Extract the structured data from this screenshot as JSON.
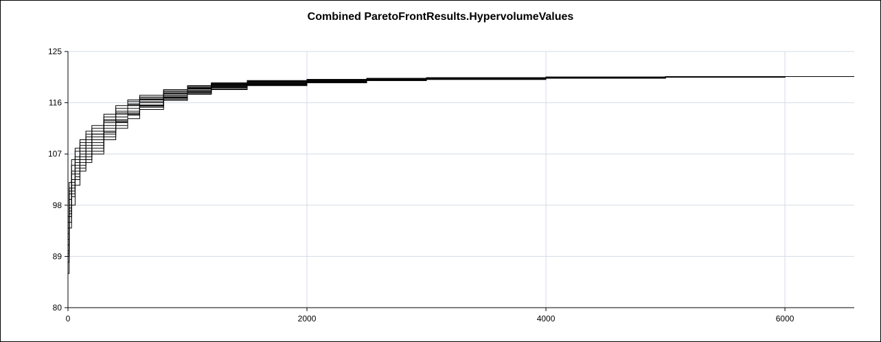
{
  "chart_data": {
    "type": "line",
    "title": "Combined ParetoFrontResults.HypervolumeValues",
    "xlabel": "",
    "ylabel": "",
    "xlim": [
      0,
      6580
    ],
    "ylim": [
      80,
      125
    ],
    "x_ticks": [
      "0",
      "2000",
      "4000",
      "6000"
    ],
    "y_ticks": [
      "80",
      "89",
      "98",
      "107",
      "116",
      "125"
    ],
    "grid": true,
    "legend": "none",
    "series_color": "#000000",
    "grid_color": "#d3dbe6",
    "series": [
      {
        "x": [
          0,
          10,
          30,
          60,
          100,
          150,
          200,
          300,
          400,
          500,
          600,
          800,
          1000,
          1200,
          1500,
          2000,
          2500,
          3000,
          4000,
          5000,
          6000,
          6580
        ],
        "y": [
          86,
          95,
          100,
          103,
          105,
          106.5,
          108,
          110.5,
          112.5,
          114,
          115.5,
          116.8,
          117.8,
          118.6,
          119.2,
          119.6,
          119.9,
          120.1,
          120.3,
          120.5,
          120.6,
          120.6
        ]
      },
      {
        "x": [
          0,
          10,
          30,
          60,
          100,
          150,
          200,
          300,
          400,
          500,
          600,
          800,
          1000,
          1200,
          1500,
          2000,
          2500,
          3000,
          4000,
          5000,
          6000,
          6580
        ],
        "y": [
          89,
          97,
          101,
          104,
          106.5,
          108,
          109.5,
          111.5,
          113,
          114.5,
          116,
          117.2,
          118.2,
          118.9,
          119.4,
          119.8,
          120,
          120.2,
          120.4,
          120.5,
          120.6,
          120.6
        ]
      },
      {
        "x": [
          0,
          10,
          30,
          60,
          100,
          150,
          200,
          300,
          400,
          500,
          600,
          800,
          1000,
          1200,
          1500,
          2000,
          2500,
          3000,
          4000,
          5000,
          6000,
          6580
        ],
        "y": [
          91,
          99,
          102.5,
          105.5,
          107.5,
          109,
          110.5,
          112.5,
          114,
          115.5,
          116.5,
          117.6,
          118.5,
          119.1,
          119.6,
          119.9,
          120.1,
          120.3,
          120.4,
          120.5,
          120.6,
          120.6
        ]
      },
      {
        "x": [
          0,
          10,
          30,
          60,
          100,
          150,
          200,
          300,
          400,
          500,
          600,
          800,
          1000,
          1200,
          1500,
          2000,
          2500,
          3000,
          4000,
          5000,
          6000,
          6580
        ],
        "y": [
          93,
          100,
          104,
          106.5,
          108.5,
          110,
          111,
          113,
          114.5,
          115.8,
          116.8,
          117.9,
          118.7,
          119.3,
          119.7,
          120,
          120.2,
          120.3,
          120.5,
          120.6,
          120.6,
          120.6
        ]
      },
      {
        "x": [
          0,
          10,
          30,
          60,
          100,
          150,
          200,
          300,
          400,
          500,
          600,
          800,
          1000,
          1200,
          1500,
          2000,
          2500,
          3000,
          4000,
          5000,
          6000,
          6580
        ],
        "y": [
          95,
          101,
          105,
          107.5,
          109,
          110.5,
          111.5,
          113.5,
          115,
          116.2,
          117,
          118.1,
          118.9,
          119.4,
          119.8,
          120.1,
          120.2,
          120.4,
          120.5,
          120.6,
          120.6,
          120.6
        ]
      },
      {
        "x": [
          0,
          10,
          30,
          60,
          100,
          150,
          200,
          300,
          400,
          500,
          600,
          800,
          1000,
          1200,
          1500,
          2000,
          2500,
          3000,
          4000,
          5000,
          6000,
          6580
        ],
        "y": [
          90,
          96,
          99.5,
          102.5,
          104.5,
          106,
          107.5,
          110,
          112,
          113.8,
          115.2,
          116.6,
          117.6,
          118.4,
          119.1,
          119.6,
          119.9,
          120.1,
          120.3,
          120.5,
          120.6,
          120.6
        ]
      },
      {
        "x": [
          0,
          10,
          30,
          60,
          100,
          150,
          200,
          300,
          400,
          500,
          600,
          800,
          1000,
          1200,
          1500,
          2000,
          2500,
          3000,
          4000,
          5000,
          6000,
          6580
        ],
        "y": [
          88,
          94,
          98,
          101.5,
          104,
          105.5,
          107,
          109.5,
          111.5,
          113.2,
          114.8,
          116.4,
          117.5,
          118.3,
          119,
          119.5,
          119.9,
          120.1,
          120.3,
          120.5,
          120.6,
          120.6
        ]
      },
      {
        "x": [
          0,
          10,
          30,
          60,
          100,
          150,
          200,
          300,
          400,
          500,
          600,
          800,
          1000,
          1200,
          1500,
          2000,
          2500,
          3000,
          4000,
          5000,
          6000,
          6580
        ],
        "y": [
          94,
          100.5,
          103.5,
          106,
          108,
          109.5,
          110.5,
          112.8,
          114.2,
          115.6,
          116.6,
          117.7,
          118.6,
          119.2,
          119.7,
          120,
          120.2,
          120.3,
          120.5,
          120.6,
          120.6,
          120.6
        ]
      },
      {
        "x": [
          0,
          10,
          30,
          60,
          100,
          150,
          200,
          300,
          400,
          500,
          600,
          800,
          1000,
          1200,
          1500,
          2000,
          2500,
          3000,
          4000,
          5000,
          6000,
          6580
        ],
        "y": [
          92,
          98,
          102,
          105,
          107,
          108.5,
          110,
          112,
          113.5,
          115,
          116.2,
          117.4,
          118.4,
          119,
          119.5,
          119.9,
          120.1,
          120.3,
          120.4,
          120.5,
          120.6,
          120.6
        ]
      },
      {
        "x": [
          0,
          10,
          30,
          60,
          100,
          150,
          200,
          300,
          400,
          500,
          600,
          800,
          1000,
          1200,
          1500,
          2000,
          2500,
          3000,
          4000,
          5000,
          6000,
          6580
        ],
        "y": [
          96,
          102,
          106,
          108,
          109.5,
          111,
          112,
          114,
          115.5,
          116.5,
          117.3,
          118.3,
          119,
          119.5,
          119.9,
          120.1,
          120.3,
          120.4,
          120.5,
          120.6,
          120.6,
          120.6
        ]
      },
      {
        "x": [
          0,
          10,
          30,
          60,
          100,
          150,
          200,
          300,
          400,
          500,
          600,
          800,
          1000,
          1200,
          1500,
          2000,
          2500,
          3000,
          4000,
          5000,
          6000,
          6580
        ],
        "y": [
          91,
          97.5,
          101.5,
          104.5,
          106,
          107.5,
          109,
          111,
          112.8,
          114.2,
          115.6,
          117,
          118,
          118.8,
          119.3,
          119.7,
          120,
          120.2,
          120.4,
          120.5,
          120.6,
          120.6
        ]
      },
      {
        "x": [
          0,
          10,
          30,
          60,
          100,
          150,
          200,
          300,
          400,
          500,
          600,
          800,
          1000,
          1200,
          1500,
          2000,
          2500,
          3000,
          4000,
          5000,
          6000,
          6580
        ],
        "y": [
          89.5,
          96.5,
          100.5,
          103.5,
          105.5,
          107,
          108.5,
          110.8,
          112.6,
          114,
          115.4,
          116.9,
          117.9,
          118.7,
          119.3,
          119.7,
          120,
          120.2,
          120.4,
          120.5,
          120.6,
          120.6
        ]
      }
    ]
  }
}
